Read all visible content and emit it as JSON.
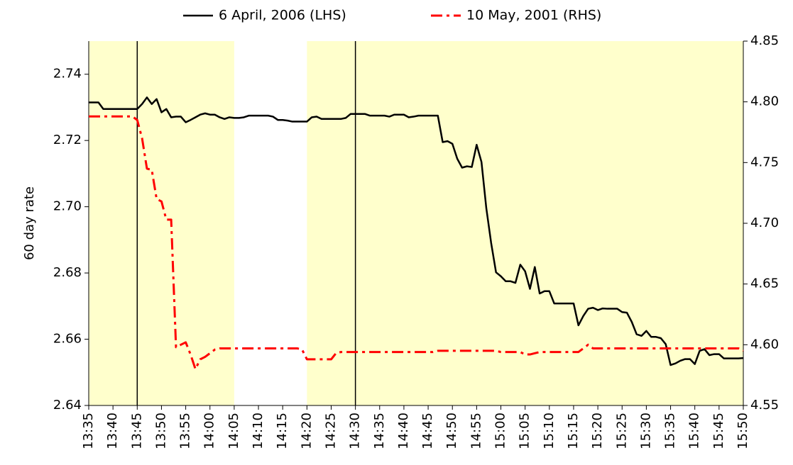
{
  "chart_data": {
    "type": "line",
    "y_label": "60 day rate",
    "x": [
      815,
      816,
      817,
      818,
      819,
      820,
      821,
      822,
      823,
      824,
      825,
      826,
      827,
      828,
      829,
      830,
      831,
      832,
      833,
      834,
      835,
      836,
      837,
      838,
      839,
      840,
      841,
      842,
      843,
      844,
      845,
      846,
      847,
      848,
      849,
      850,
      851,
      852,
      853,
      854,
      855,
      856,
      857,
      858,
      859,
      860,
      861,
      862,
      863,
      864,
      865,
      866,
      867,
      868,
      869,
      870,
      871,
      872,
      873,
      874,
      875,
      876,
      877,
      878,
      879,
      880,
      881,
      882,
      883,
      884,
      885,
      886,
      887,
      888,
      889,
      890,
      891,
      892,
      893,
      894,
      895,
      896,
      897,
      898,
      899,
      900,
      901,
      902,
      903,
      904,
      905,
      906,
      907,
      908,
      909,
      910,
      911,
      912,
      913,
      914,
      915,
      916,
      917,
      918,
      919,
      920,
      921,
      922,
      923,
      924,
      925,
      926,
      927,
      928,
      929,
      930,
      931,
      932,
      933,
      934,
      935,
      936,
      937,
      938,
      939,
      940,
      941,
      942,
      943,
      944,
      945,
      946,
      947,
      948,
      949,
      950
    ],
    "series": [
      {
        "name": "6 April, 2006 (LHS)",
        "color": "#000000",
        "axis": "y",
        "values": [
          2.7315,
          2.7315,
          2.7315,
          2.7295,
          2.7295,
          2.7295,
          2.7295,
          2.7295,
          2.7295,
          2.7295,
          2.7295,
          2.731,
          2.733,
          2.731,
          2.7325,
          2.7285,
          2.7295,
          2.727,
          2.7272,
          2.7272,
          2.7255,
          2.7262,
          2.727,
          2.7278,
          2.7282,
          2.7278,
          2.7278,
          2.727,
          2.7265,
          2.727,
          2.7268,
          2.7268,
          2.727,
          2.7275,
          2.7275,
          2.7275,
          2.7275,
          2.7275,
          2.7272,
          2.7262,
          2.7262,
          2.726,
          2.7257,
          2.7257,
          2.7257,
          2.7257,
          2.727,
          2.7272,
          2.7265,
          2.7265,
          2.7265,
          2.7265,
          2.7265,
          2.7268,
          2.728,
          2.728,
          2.728,
          2.728,
          2.7275,
          2.7275,
          2.7275,
          2.7275,
          2.7272,
          2.7278,
          2.7278,
          2.7278,
          2.727,
          2.7272,
          2.7275,
          2.7275,
          2.7275,
          2.7275,
          2.7275,
          2.7195,
          2.7198,
          2.719,
          2.7145,
          2.7118,
          2.7122,
          2.712,
          2.7187,
          2.7135,
          2.6995,
          2.689,
          2.6802,
          2.679,
          2.6775,
          2.6775,
          2.677,
          2.6825,
          2.6805,
          2.6752,
          2.6818,
          2.6738,
          2.6745,
          2.6745,
          2.6708,
          2.6708,
          2.6708,
          2.6708,
          2.6708,
          2.6642,
          2.667,
          2.6692,
          2.6695,
          2.6688,
          2.6693,
          2.6692,
          2.6692,
          2.6692,
          2.6682,
          2.668,
          2.6652,
          2.6615,
          2.661,
          2.6625,
          2.6607,
          2.6607,
          2.6603,
          2.6585,
          2.6522,
          2.6527,
          2.6535,
          2.654,
          2.654,
          2.6525,
          2.6565,
          2.657,
          2.6552,
          2.6555,
          2.6555,
          2.6542,
          2.6542,
          2.6542,
          2.6542,
          2.6543
        ]
      },
      {
        "name": "10 May, 2001 (RHS)",
        "color": "#ff0000",
        "axis": "y2",
        "values": [
          4.788,
          4.788,
          4.788,
          4.788,
          4.788,
          4.788,
          4.788,
          4.788,
          4.788,
          4.788,
          4.785,
          4.77,
          4.745,
          4.744,
          4.72,
          4.718,
          4.703,
          4.703,
          4.598,
          4.6,
          4.602,
          4.592,
          4.58,
          4.588,
          4.59,
          4.593,
          4.596,
          4.597,
          4.597,
          4.597,
          4.597,
          4.597,
          4.597,
          4.597,
          4.597,
          4.597,
          4.597,
          4.597,
          4.597,
          4.597,
          4.597,
          4.597,
          4.597,
          4.597,
          4.596,
          4.588,
          4.588,
          4.588,
          4.588,
          4.588,
          4.588,
          4.593,
          4.594,
          4.594,
          4.594,
          4.594,
          4.594,
          4.594,
          4.594,
          4.594,
          4.594,
          4.594,
          4.594,
          4.594,
          4.594,
          4.594,
          4.594,
          4.594,
          4.594,
          4.594,
          4.594,
          4.594,
          4.595,
          4.595,
          4.595,
          4.595,
          4.595,
          4.595,
          4.595,
          4.595,
          4.595,
          4.595,
          4.595,
          4.595,
          4.595,
          4.594,
          4.594,
          4.594,
          4.594,
          4.594,
          4.592,
          4.592,
          4.593,
          4.594,
          4.594,
          4.594,
          4.594,
          4.594,
          4.594,
          4.594,
          4.594,
          4.594,
          4.597,
          4.6,
          4.597,
          4.597,
          4.597,
          4.597,
          4.597,
          4.597,
          4.597,
          4.597,
          4.597,
          4.597,
          4.597,
          4.597,
          4.597,
          4.597,
          4.597,
          4.597,
          4.597,
          4.597,
          4.597,
          4.597,
          4.597,
          4.597,
          4.597,
          4.597,
          4.597,
          4.597,
          4.597,
          4.597,
          4.597,
          4.597,
          4.597,
          4.595
        ]
      }
    ],
    "xlim": [
      815,
      950
    ],
    "xticks": [
      {
        "value": 815,
        "label": "13:35"
      },
      {
        "value": 820,
        "label": "13:40"
      },
      {
        "value": 825,
        "label": "13:45"
      },
      {
        "value": 830,
        "label": "13:50"
      },
      {
        "value": 835,
        "label": "13:55"
      },
      {
        "value": 840,
        "label": "14:00"
      },
      {
        "value": 845,
        "label": "14:05"
      },
      {
        "value": 850,
        "label": "14:10"
      },
      {
        "value": 855,
        "label": "14:15"
      },
      {
        "value": 860,
        "label": "14:20"
      },
      {
        "value": 865,
        "label": "14:25"
      },
      {
        "value": 870,
        "label": "14:30"
      },
      {
        "value": 875,
        "label": "14:35"
      },
      {
        "value": 880,
        "label": "14:40"
      },
      {
        "value": 885,
        "label": "14:45"
      },
      {
        "value": 890,
        "label": "14:50"
      },
      {
        "value": 895,
        "label": "14:55"
      },
      {
        "value": 900,
        "label": "15:00"
      },
      {
        "value": 905,
        "label": "15:05"
      },
      {
        "value": 910,
        "label": "15:10"
      },
      {
        "value": 915,
        "label": "15:15"
      },
      {
        "value": 920,
        "label": "15:20"
      },
      {
        "value": 925,
        "label": "15:25"
      },
      {
        "value": 930,
        "label": "15:30"
      },
      {
        "value": 935,
        "label": "15:35"
      },
      {
        "value": 940,
        "label": "15:40"
      },
      {
        "value": 945,
        "label": "15:45"
      },
      {
        "value": 950,
        "label": "15:50"
      }
    ],
    "ylim": [
      2.64,
      2.75
    ],
    "yticks": [
      2.64,
      {
        "value": 2.66,
        "label": "2.66"
      },
      2.68,
      {
        "value": 2.7,
        "label": "2.70"
      },
      2.72,
      2.74
    ],
    "y2lim": [
      4.55,
      4.85
    ],
    "y2ticks": [
      4.55,
      {
        "value": 4.6,
        "label": "4.60"
      },
      4.65,
      {
        "value": 4.7,
        "label": "4.70"
      },
      4.75,
      {
        "value": 4.8,
        "label": "4.80"
      },
      4.85
    ],
    "shaded_ranges": [
      [
        815,
        845
      ],
      [
        860,
        950
      ]
    ],
    "shade_color": "#ffffcc",
    "vlines": [
      825,
      870
    ],
    "grid": false,
    "legend": "top"
  }
}
